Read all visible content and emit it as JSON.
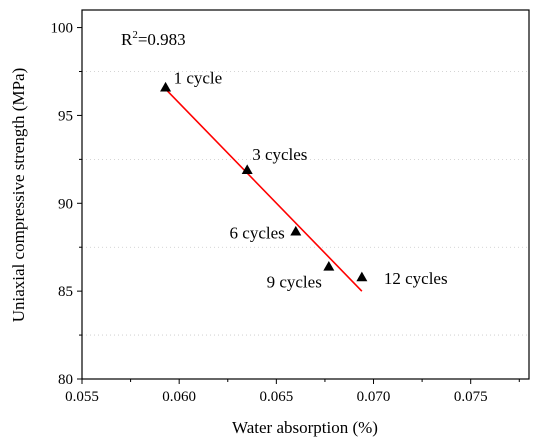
{
  "chart_data": {
    "type": "scatter",
    "xlabel": "Water absorption (%)",
    "ylabel": "Uniaxial compressive strength (MPa)",
    "xlim": [
      0.055,
      0.078
    ],
    "ylim": [
      80,
      101
    ],
    "x_ticks": [
      "0.055",
      "0.060",
      "0.065",
      "0.070",
      "0.075"
    ],
    "y_ticks": [
      "80",
      "85",
      "90",
      "95",
      "100"
    ],
    "grid": "horizontal dotted",
    "annotation": {
      "r2_prefix": "R",
      "r2_sup": "2",
      "r2_value": "=0.983"
    },
    "points": [
      {
        "x": 0.0593,
        "y": 96.6,
        "label": "1 cycle"
      },
      {
        "x": 0.0635,
        "y": 91.9,
        "label": "3 cycles"
      },
      {
        "x": 0.066,
        "y": 88.4,
        "label": "6 cycles"
      },
      {
        "x": 0.0677,
        "y": 86.4,
        "label": "9 cycles"
      },
      {
        "x": 0.0694,
        "y": 85.8,
        "label": "12 cycles"
      }
    ],
    "fit_line": {
      "x_start": 0.0593,
      "y_start": 96.5,
      "x_end": 0.0694,
      "y_end": 85.0,
      "color": "#ff0000"
    },
    "marker_color": "#000000"
  }
}
